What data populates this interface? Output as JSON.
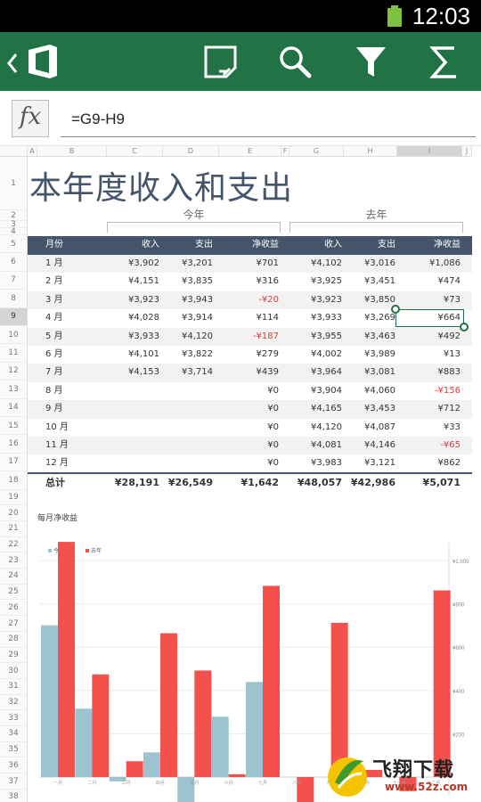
{
  "status_bar": {
    "time": "12:03",
    "battery_color": "#7fc241"
  },
  "toolbar": {
    "background": "#217346",
    "buttons": [
      {
        "name": "back",
        "icon": "chevron-left-icon"
      },
      {
        "name": "office",
        "icon": "office-logo-icon"
      },
      {
        "name": "comment",
        "icon": "comment-icon"
      },
      {
        "name": "search",
        "icon": "search-icon"
      },
      {
        "name": "filter",
        "icon": "filter-icon"
      },
      {
        "name": "sum",
        "icon": "sigma-icon"
      }
    ]
  },
  "formula_bar": {
    "fx_label": "fx",
    "formula": "=G9-H9"
  },
  "columns": [
    "A",
    "B",
    "C",
    "D",
    "E",
    "F",
    "G",
    "H",
    "I",
    "J"
  ],
  "selected_column": "I",
  "selected_row": "9",
  "rows": [
    "1",
    "2",
    "3",
    "4",
    "5",
    "6",
    "7",
    "8",
    "9",
    "10",
    "11",
    "12",
    "13",
    "14",
    "15",
    "16",
    "17",
    "18",
    "19",
    "20",
    "21",
    "22",
    "23",
    "24",
    "25",
    "26",
    "27",
    "28",
    "29",
    "30",
    "31",
    "32",
    "33",
    "34",
    "35",
    "36",
    "37",
    "38"
  ],
  "sheet": {
    "title": "本年度收入和支出",
    "group_this_year": "今年",
    "group_last_year": "去年",
    "headers": [
      "月份",
      "收入",
      "支出",
      "净收益",
      "收入",
      "支出",
      "净收益"
    ],
    "rows": [
      {
        "month": "1 月",
        "c": "¥3,902",
        "d": "¥3,201",
        "e": "¥701",
        "g": "¥4,102",
        "h": "¥3,016",
        "i": "¥1,086",
        "e_neg": false,
        "i_neg": false
      },
      {
        "month": "2 月",
        "c": "¥4,151",
        "d": "¥3,835",
        "e": "¥316",
        "g": "¥3,925",
        "h": "¥3,451",
        "i": "¥474",
        "e_neg": false,
        "i_neg": false
      },
      {
        "month": "3 月",
        "c": "¥3,923",
        "d": "¥3,943",
        "e": "-¥20",
        "g": "¥3,923",
        "h": "¥3,850",
        "i": "¥73",
        "e_neg": true,
        "i_neg": false
      },
      {
        "month": "4 月",
        "c": "¥4,028",
        "d": "¥3,914",
        "e": "¥114",
        "g": "¥3,933",
        "h": "¥3,269",
        "i": "¥664",
        "e_neg": false,
        "i_neg": false
      },
      {
        "month": "5 月",
        "c": "¥3,933",
        "d": "¥4,120",
        "e": "-¥187",
        "g": "¥3,955",
        "h": "¥3,463",
        "i": "¥492",
        "e_neg": true,
        "i_neg": false
      },
      {
        "month": "6 月",
        "c": "¥4,101",
        "d": "¥3,822",
        "e": "¥279",
        "g": "¥4,002",
        "h": "¥3,989",
        "i": "¥13",
        "e_neg": false,
        "i_neg": false
      },
      {
        "month": "7 月",
        "c": "¥4,153",
        "d": "¥3,714",
        "e": "¥439",
        "g": "¥3,964",
        "h": "¥3,081",
        "i": "¥883",
        "e_neg": false,
        "i_neg": false
      },
      {
        "month": "8 月",
        "c": "",
        "d": "",
        "e": "¥0",
        "g": "¥3,904",
        "h": "¥4,060",
        "i": "-¥156",
        "e_neg": false,
        "i_neg": true
      },
      {
        "month": "9 月",
        "c": "",
        "d": "",
        "e": "¥0",
        "g": "¥4,165",
        "h": "¥3,453",
        "i": "¥712",
        "e_neg": false,
        "i_neg": false
      },
      {
        "month": "10 月",
        "c": "",
        "d": "",
        "e": "¥0",
        "g": "¥4,120",
        "h": "¥4,087",
        "i": "¥33",
        "e_neg": false,
        "i_neg": false
      },
      {
        "month": "11 月",
        "c": "",
        "d": "",
        "e": "¥0",
        "g": "¥4,081",
        "h": "¥4,146",
        "i": "-¥65",
        "e_neg": false,
        "i_neg": true
      },
      {
        "month": "12 月",
        "c": "",
        "d": "",
        "e": "¥0",
        "g": "¥3,983",
        "h": "¥3,121",
        "i": "¥862",
        "e_neg": false,
        "i_neg": false
      }
    ],
    "total": {
      "label": "总计",
      "c": "¥28,191",
      "d": "¥26,549",
      "e": "¥1,642",
      "g": "¥48,057",
      "h": "¥42,986",
      "i": "¥5,071"
    }
  },
  "chart_data": {
    "type": "bar",
    "title": "每月净收益",
    "categories": [
      "一月",
      "二月",
      "三月",
      "四月",
      "五月",
      "六月",
      "七月",
      "八月",
      "九月",
      "十月",
      "十一月",
      "十二月"
    ],
    "series": [
      {
        "name": "今年",
        "color": "#9dc3cf",
        "values": [
          701,
          316,
          -20,
          114,
          -187,
          279,
          439,
          0,
          0,
          0,
          0,
          0
        ]
      },
      {
        "name": "去年",
        "color": "#f4514c",
        "values": [
          1086,
          474,
          73,
          664,
          492,
          13,
          883,
          -156,
          712,
          33,
          -65,
          862
        ]
      }
    ],
    "y_ticks": [
      "¥1,000",
      "¥800",
      "¥600",
      "¥400",
      "¥200"
    ],
    "ylim": [
      -200,
      1100
    ],
    "legend_position": "top-left",
    "grid": true
  },
  "watermark": {
    "text": "飞翔下载",
    "url": "www.52z.com"
  }
}
